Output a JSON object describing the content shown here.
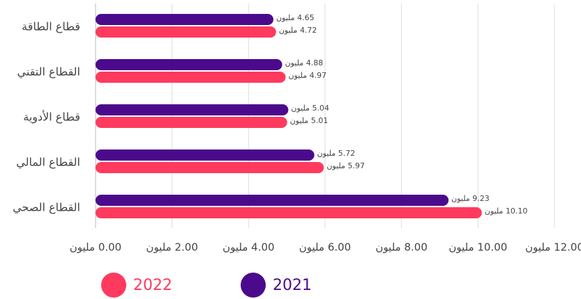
{
  "chart_data": {
    "type": "hbar",
    "categories": [
      "قطاع الطاقة",
      "القطاع التقني",
      "قطاع الأدوية",
      "القطاع المالي",
      "القطاع الصحي"
    ],
    "series": [
      {
        "name": "2022",
        "color": "#ff3a5f",
        "values": [
          4.72,
          4.97,
          5.01,
          5.97,
          10.1
        ],
        "value_labels": [
          "4.72 مليون",
          "4.97 مليون",
          "5.01 مليون",
          "5.97 مليون",
          "10.10 مليون"
        ]
      },
      {
        "name": "2021",
        "color": "#4b0a8c",
        "values": [
          4.65,
          4.88,
          5.04,
          5.72,
          9.23
        ],
        "value_labels": [
          "4.65 مليون",
          "4.88 مليون",
          "5.04 مليون",
          "5.72 مليون",
          "9.23 مليون"
        ]
      }
    ],
    "xlim": [
      0,
      12
    ],
    "xticks": [
      {
        "value": 0,
        "label": "0.00 مليون"
      },
      {
        "value": 2,
        "label": "2.00 مليون"
      },
      {
        "value": 4,
        "label": "4.00 مليون"
      },
      {
        "value": 6,
        "label": "6.00 مليون"
      },
      {
        "value": 8,
        "label": "8.00 مليون"
      },
      {
        "value": 10,
        "label": "10.00 مليون"
      },
      {
        "value": 12,
        "label": "12.00 مليون"
      }
    ],
    "grid": true
  }
}
